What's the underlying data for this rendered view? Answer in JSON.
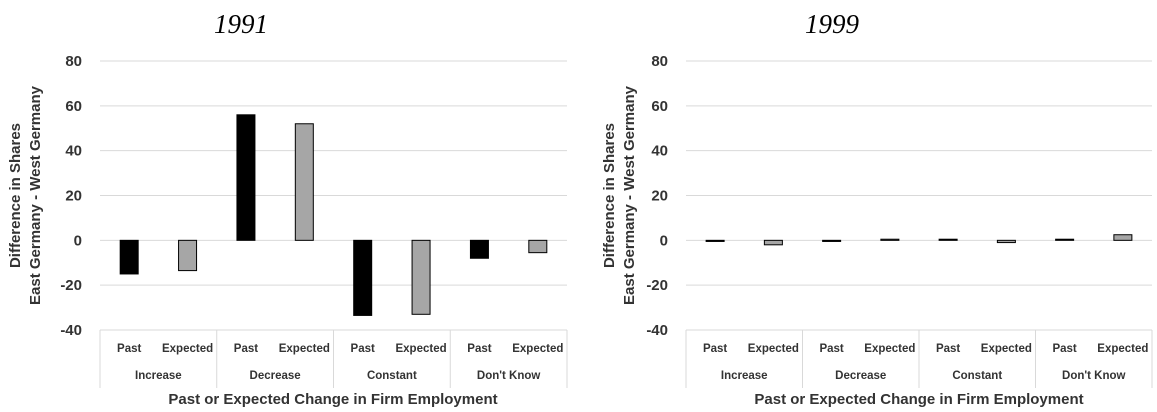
{
  "chart_data": [
    {
      "type": "bar",
      "title": "1991",
      "ylabel_line1": "Difference in Shares",
      "ylabel_line2": "East Germany - West Germany",
      "xlabel": "Past or Expected Change in Firm Employment",
      "ylim": [
        -40,
        80
      ],
      "yticks": [
        -40,
        -20,
        0,
        20,
        40,
        60,
        80
      ],
      "grid": true,
      "groups": [
        "Increase",
        "Decrease",
        "Constant",
        "Don't Know"
      ],
      "subcategories": [
        "Past",
        "Expected"
      ],
      "series": [
        {
          "subcategory": "Past",
          "color": "#000000",
          "values": [
            -15,
            56,
            -33.5,
            -8
          ]
        },
        {
          "subcategory": "Expected",
          "color": "#a6a6a6",
          "values": [
            -13.5,
            52,
            -33,
            -5.5
          ]
        }
      ]
    },
    {
      "type": "bar",
      "title": "1999",
      "ylabel_line1": "Difference in Shares",
      "ylabel_line2": "East Germany - West Germany",
      "xlabel": "Past or Expected Change in Firm Employment",
      "ylim": [
        -40,
        80
      ],
      "yticks": [
        -40,
        -20,
        0,
        20,
        40,
        60,
        80
      ],
      "grid": true,
      "groups": [
        "Increase",
        "Decrease",
        "Constant",
        "Don't Know"
      ],
      "subcategories": [
        "Past",
        "Expected"
      ],
      "series": [
        {
          "subcategory": "Past",
          "color": "#000000",
          "values": [
            -0.5,
            -0.5,
            0.5,
            0.5
          ]
        },
        {
          "subcategory": "Expected",
          "color": "#a6a6a6",
          "values": [
            -2,
            0.5,
            -1,
            2.5
          ]
        }
      ]
    }
  ]
}
